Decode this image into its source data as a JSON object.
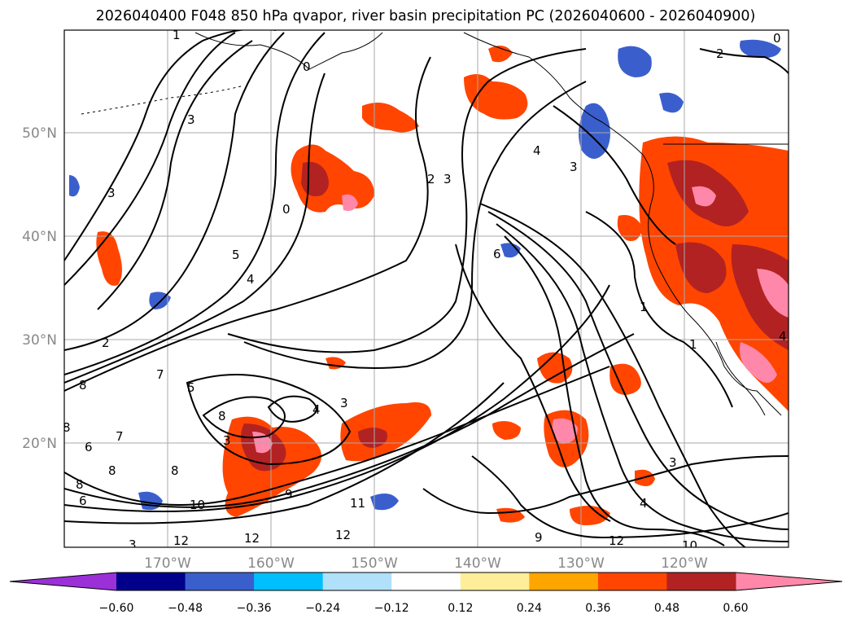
{
  "title": "2026040400 F048 850 hPa qvapor, river basin precipitation PC (2026040600 - 2026040900)",
  "longitude_ticks": [
    "170°W",
    "160°W",
    "150°W",
    "140°W",
    "130°W",
    "120°W"
  ],
  "latitude_ticks": [
    "50°N",
    "40°N",
    "30°N",
    "20°N"
  ],
  "colorbar": {
    "labels": [
      "−0.60",
      "−0.48",
      "−0.36",
      "−0.24",
      "−0.12",
      "0.12",
      "0.24",
      "0.36",
      "0.48",
      "0.60"
    ],
    "colors": [
      "#9b30d8",
      "#00008b",
      "#3a5fcd",
      "#00bfff",
      "#b0e0fa",
      "#ffffff",
      "#ffee99",
      "#ffa500",
      "#ff4500",
      "#b22222",
      "#ff88aa"
    ]
  },
  "contour_labels": [
    "1",
    "2",
    "3",
    "4",
    "5",
    "6",
    "7",
    "8",
    "9",
    "10",
    "11",
    "12",
    "0"
  ],
  "chart_data": {
    "type": "heatmap",
    "title": "2026040400 F048 850 hPa qvapor, river basin precipitation PC (2026040600 - 2026040900)",
    "lon_range": [
      -180,
      -110
    ],
    "lat_range": [
      10,
      60
    ],
    "contour_variable": "850 hPa qvapor",
    "shaded_variable": "river basin precipitation PC",
    "color_levels": [
      -0.6,
      -0.48,
      -0.36,
      -0.24,
      -0.12,
      0.12,
      0.24,
      0.36,
      0.48,
      0.6
    ],
    "gridlines": true
  }
}
